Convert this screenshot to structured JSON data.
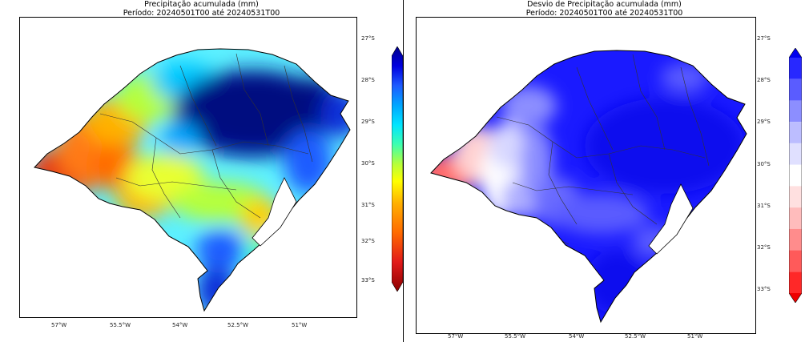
{
  "panels": [
    {
      "id": "left",
      "title_line1": "Precipitação acumulada (mm)",
      "title_line2": "Período: 20240501T00 até 20240531T00",
      "lat_labels": [
        "27°S",
        "28°S",
        "29°S",
        "30°S",
        "31°S",
        "32°S",
        "33°S"
      ],
      "lon_labels": [
        "57°W",
        "55.5°W",
        "54°W",
        "52.5°W",
        "51°W"
      ],
      "colorbar": {
        "type": "continuous",
        "colors": [
          "#8b0000",
          "#e21a1a",
          "#ff6a00",
          "#ffb000",
          "#ffff00",
          "#b6ff3a",
          "#3cffb0",
          "#00e5ff",
          "#00a6ff",
          "#1e5bff",
          "#0000e0",
          "#00008b"
        ]
      }
    },
    {
      "id": "right",
      "title_line1": "Desvio de Precipitação acumulada (mm)",
      "title_line2": "Período: 20240501T00 até 20240531T00",
      "lat_labels": [
        "27°S",
        "28°S",
        "29°S",
        "30°S",
        "31°S",
        "32°S",
        "33°S"
      ],
      "lon_labels": [
        "57°W",
        "55.5°W",
        "54°W",
        "52.5°W",
        "51°W"
      ],
      "colorbar": {
        "type": "discrete",
        "colors": [
          "#0000ee",
          "#2828ff",
          "#5a5cff",
          "#8c8eff",
          "#bcbdff",
          "#e0e0ff",
          "#ffffff",
          "#ffe0e0",
          "#ffbcbc",
          "#ff8c8c",
          "#ff5a5a",
          "#ff2828",
          "#ee0000"
        ]
      }
    }
  ],
  "colors": {
    "frame": "#000000",
    "state_border": "#000000",
    "region_lines": "#333333"
  }
}
